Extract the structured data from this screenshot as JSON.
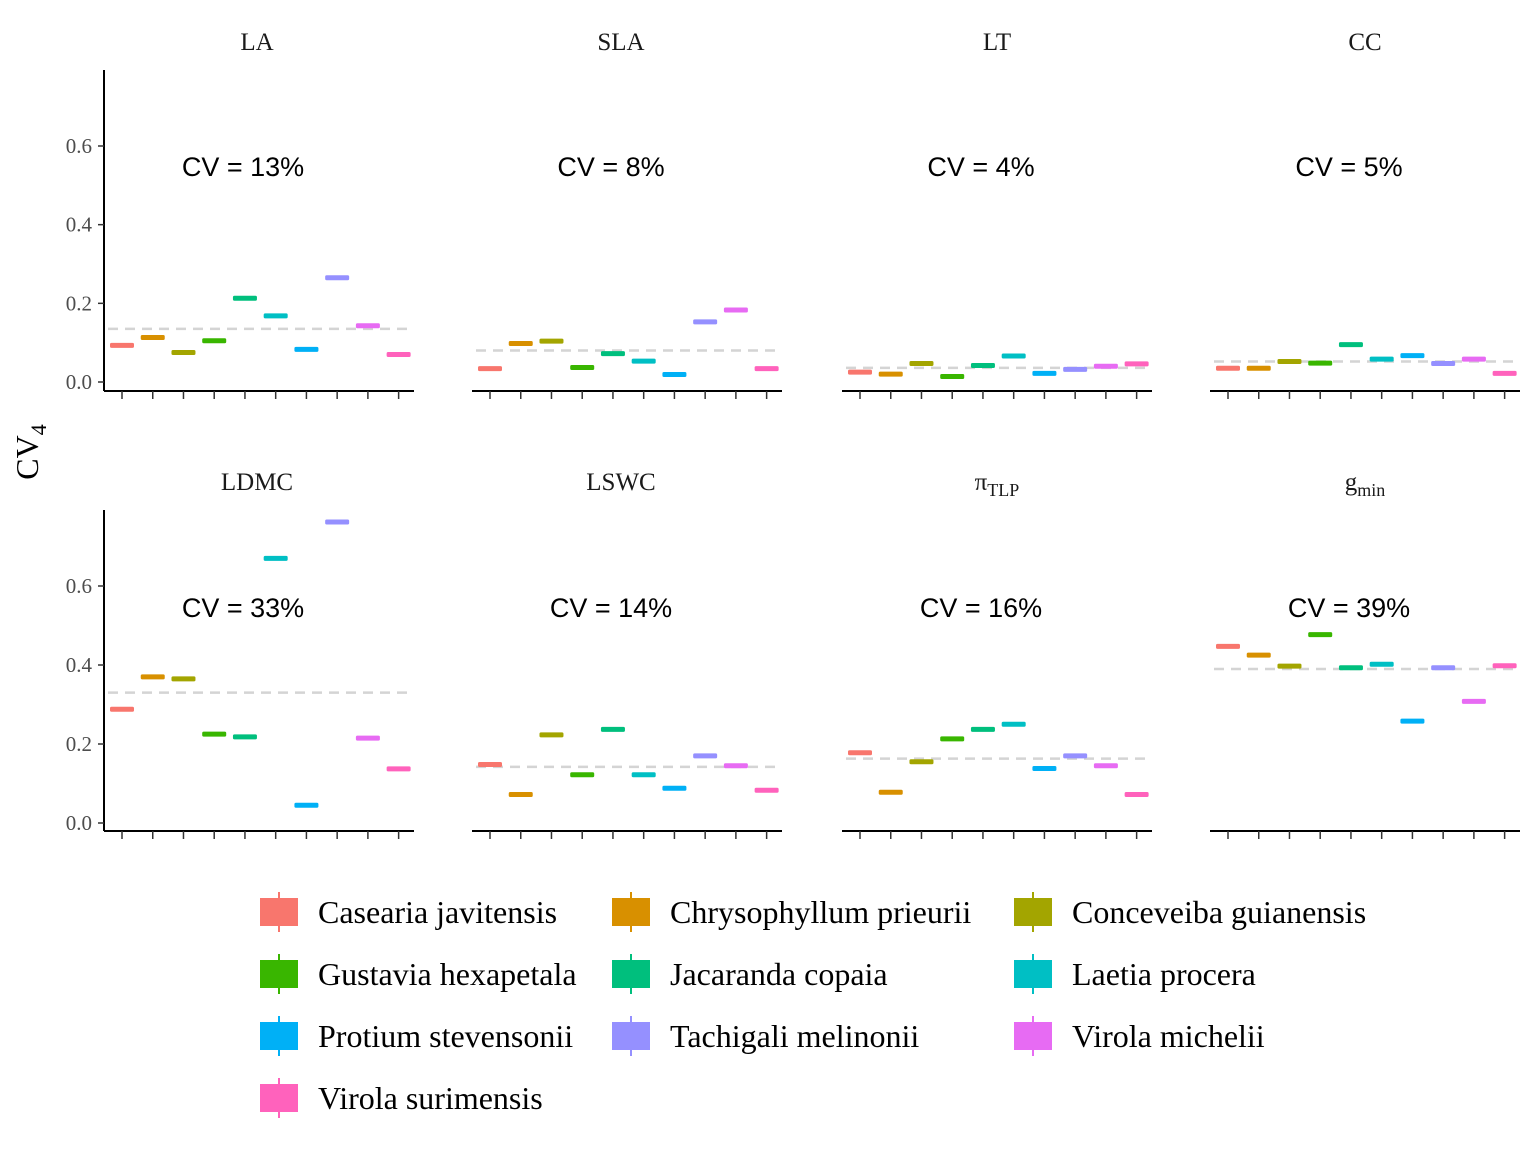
{
  "chart_data": {
    "type": "errorbar",
    "ylabel": "CV",
    "ylabel_sub": "4",
    "ylim": [
      0,
      0.8
    ],
    "yticks": [
      0.0,
      0.2,
      0.4,
      0.6
    ],
    "ytick_labels": [
      "0.0",
      "0.2",
      "0.4",
      "0.6"
    ],
    "grid": false,
    "legend_position": "bottom",
    "species": [
      {
        "name": "Casearia javitensis",
        "color": "#F8766D"
      },
      {
        "name": "Chrysophyllum prieurii",
        "color": "#D89000"
      },
      {
        "name": "Conceveiba guianensis",
        "color": "#A3A500"
      },
      {
        "name": "Gustavia hexapetala",
        "color": "#39B600"
      },
      {
        "name": "Jacaranda copaia",
        "color": "#00BF7D"
      },
      {
        "name": "Laetia procera",
        "color": "#00BFC4"
      },
      {
        "name": "Protium stevensonii",
        "color": "#00B0F6"
      },
      {
        "name": "Tachigali melinonii",
        "color": "#9590FF"
      },
      {
        "name": "Virola michelii",
        "color": "#E76BF3"
      },
      {
        "name": "Virola surimensis",
        "color": "#FF62BC"
      }
    ],
    "panels": [
      {
        "trait": "LA",
        "trait_sub": "",
        "cv_label": "CV = 13%",
        "mean": 0.135,
        "values": [
          0.093,
          0.113,
          0.075,
          0.105,
          0.213,
          0.168,
          0.083,
          0.265,
          0.143,
          0.07
        ]
      },
      {
        "trait": "SLA",
        "trait_sub": "",
        "cv_label": "CV = 8%",
        "mean": 0.08,
        "values": [
          0.034,
          0.098,
          0.104,
          0.037,
          0.072,
          0.053,
          0.019,
          0.153,
          0.183,
          0.034
        ]
      },
      {
        "trait": "LT",
        "trait_sub": "",
        "cv_label": "CV = 4%",
        "mean": 0.036,
        "values": [
          0.025,
          0.02,
          0.047,
          0.014,
          0.042,
          0.066,
          0.022,
          0.032,
          0.04,
          0.046
        ]
      },
      {
        "trait": "CC",
        "trait_sub": "",
        "cv_label": "CV = 5%",
        "mean": 0.052,
        "values": [
          0.035,
          0.035,
          0.052,
          0.048,
          0.095,
          0.058,
          0.067,
          0.047,
          0.058,
          0.022
        ]
      },
      {
        "trait": "LDMC",
        "trait_sub": "",
        "cv_label": "CV = 33%",
        "mean": 0.33,
        "values": [
          0.288,
          0.37,
          0.365,
          0.225,
          0.218,
          0.67,
          0.045,
          0.762,
          0.215,
          0.137
        ]
      },
      {
        "trait": "LSWC",
        "trait_sub": "",
        "cv_label": "CV = 14%",
        "mean": 0.142,
        "values": [
          0.148,
          0.072,
          0.223,
          0.122,
          0.237,
          0.122,
          0.088,
          0.17,
          0.145,
          0.083
        ]
      },
      {
        "trait": "π",
        "trait_sub": "TLP",
        "cv_label": "CV = 16%",
        "mean": 0.163,
        "values": [
          0.178,
          0.078,
          0.155,
          0.213,
          0.237,
          0.25,
          0.138,
          0.17,
          0.145,
          0.072
        ]
      },
      {
        "trait": "g",
        "trait_sub": "min",
        "cv_label": "CV = 39%",
        "mean": 0.39,
        "values": [
          0.447,
          0.425,
          0.397,
          0.477,
          0.393,
          0.402,
          0.258,
          0.393,
          0.308,
          0.398
        ]
      }
    ]
  }
}
